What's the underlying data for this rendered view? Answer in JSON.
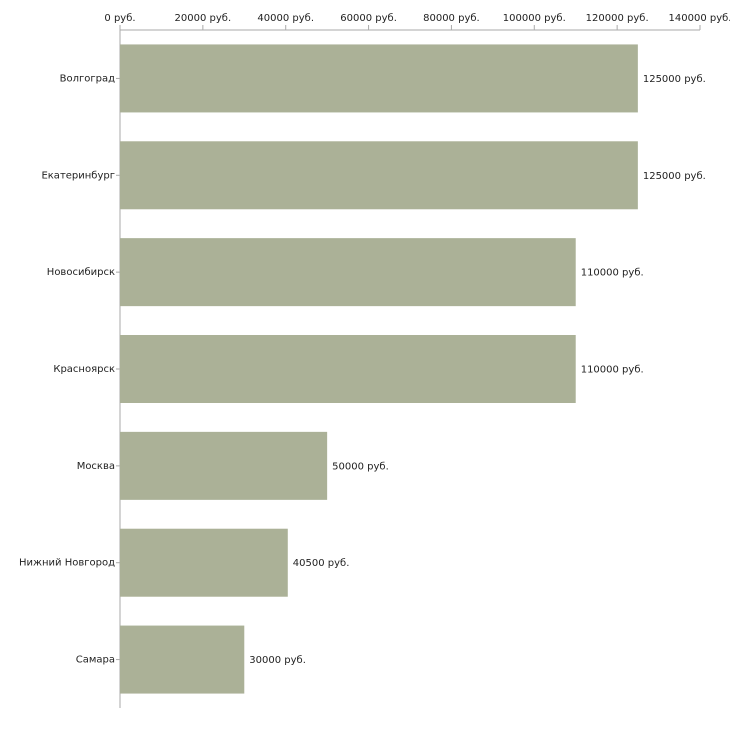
{
  "chart_data": {
    "type": "bar",
    "orientation": "horizontal",
    "title": "",
    "xlabel": "",
    "ylabel": "",
    "categories": [
      "Волгоград",
      "Екатеринбург",
      "Новосибирск",
      "Красноярск",
      "Москва",
      "Нижний Новгород",
      "Самара"
    ],
    "values": [
      125000,
      125000,
      110000,
      110000,
      50000,
      40500,
      30000
    ],
    "value_labels": [
      "125000 руб.",
      "125000 руб.",
      "110000 руб.",
      "110000 руб.",
      "50000 руб.",
      "40500 руб.",
      "30000 руб."
    ],
    "xlim": [
      0,
      140000
    ],
    "ticks": [
      0,
      20000,
      40000,
      60000,
      80000,
      100000,
      120000,
      140000
    ],
    "tick_labels": [
      "0 руб.",
      "20000 руб.",
      "40000 руб.",
      "60000 руб.",
      "80000 руб.",
      "100000 руб.",
      "120000 руб.",
      "140000 руб."
    ],
    "axis_position": "top",
    "grid": false,
    "bar_color": "#abb197",
    "axis_color": "#aaaaaa"
  }
}
